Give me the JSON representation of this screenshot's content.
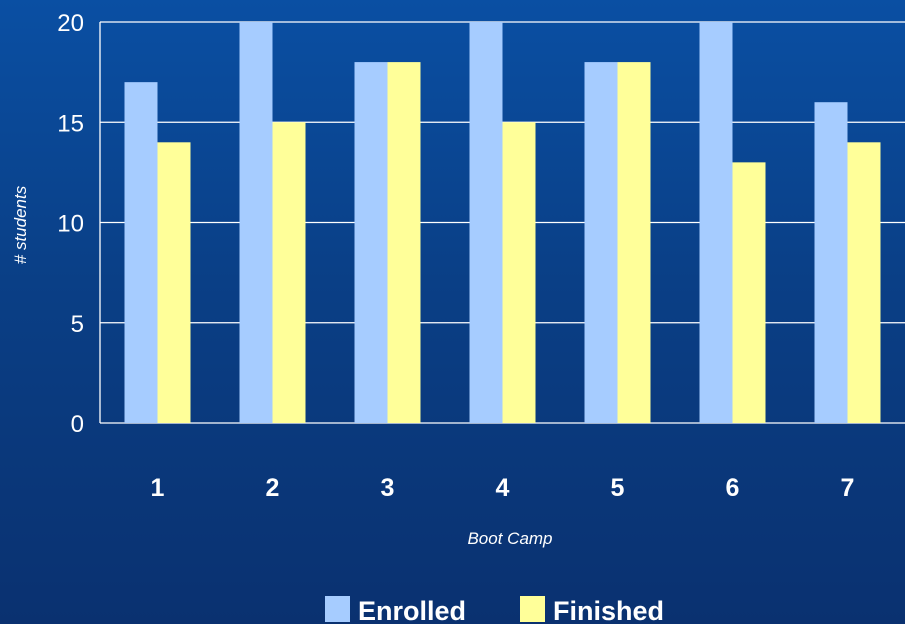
{
  "chart_data": {
    "type": "bar",
    "categories": [
      "1",
      "2",
      "3",
      "4",
      "5",
      "6",
      "7"
    ],
    "series": [
      {
        "name": "Enrolled",
        "values": [
          17,
          20,
          18,
          20,
          18,
          20,
          16
        ],
        "color": "#a6ccff"
      },
      {
        "name": "Finished",
        "values": [
          14,
          15,
          18,
          15,
          18,
          13,
          14
        ],
        "color": "#ffff99"
      }
    ],
    "title": "",
    "xlabel": "Boot Camp",
    "ylabel": "# students",
    "ylim": [
      0,
      20
    ],
    "yticks": [
      0,
      5,
      10,
      15,
      20
    ],
    "grid": true,
    "legend_position": "bottom"
  }
}
